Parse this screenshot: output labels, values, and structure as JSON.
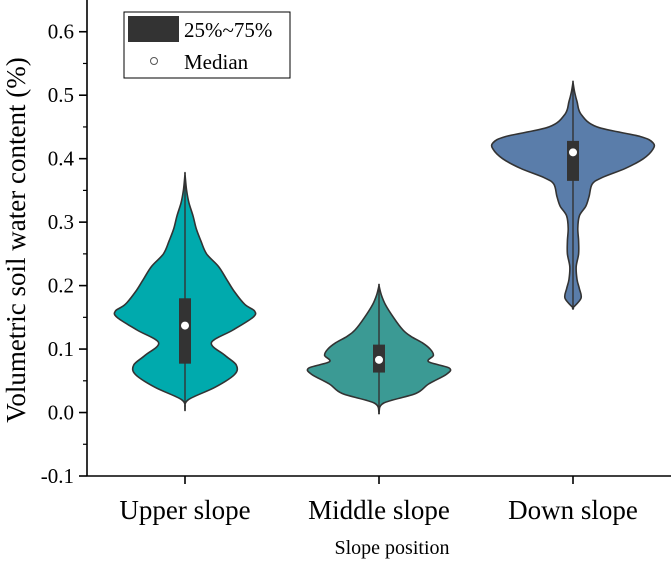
{
  "chart_data": {
    "type": "violin",
    "title": "",
    "xlabel": "Slope position",
    "ylabel": "Volumetric soil water content (%)",
    "ylim": [
      -0.1,
      0.65
    ],
    "yticks": [
      "-0.1",
      "0.0",
      "0.1",
      "0.2",
      "0.3",
      "0.4",
      "0.5",
      "0.6"
    ],
    "yticks_values": [
      -0.1,
      0.0,
      0.1,
      0.2,
      0.3,
      0.4,
      0.5,
      0.6
    ],
    "categories": [
      "Upper slope",
      "Middle slope",
      "Down slope"
    ],
    "legend": {
      "position": "top-left",
      "items": [
        {
          "label": "25%~75%",
          "symbol": "box"
        },
        {
          "label": "Median",
          "symbol": "circle"
        }
      ]
    },
    "series": [
      {
        "category": "Upper slope",
        "color": "#00AAAD",
        "min": 0.005,
        "max": 0.375,
        "q1": 0.077,
        "median": 0.137,
        "q3": 0.18,
        "density": [
          [
            0.005,
            0
          ],
          [
            0.02,
            0.04
          ],
          [
            0.04,
            0.38
          ],
          [
            0.06,
            0.62
          ],
          [
            0.075,
            0.64
          ],
          [
            0.09,
            0.5
          ],
          [
            0.11,
            0.33
          ],
          [
            0.13,
            0.6
          ],
          [
            0.15,
            0.85
          ],
          [
            0.16,
            0.87
          ],
          [
            0.17,
            0.75
          ],
          [
            0.19,
            0.62
          ],
          [
            0.21,
            0.52
          ],
          [
            0.23,
            0.42
          ],
          [
            0.25,
            0.27
          ],
          [
            0.27,
            0.2
          ],
          [
            0.29,
            0.14
          ],
          [
            0.31,
            0.1
          ],
          [
            0.33,
            0.05
          ],
          [
            0.35,
            0.02
          ],
          [
            0.375,
            0
          ]
        ]
      },
      {
        "category": "Middle slope",
        "color": "#3B9A94",
        "min": 0.0,
        "max": 0.2,
        "q1": 0.063,
        "median": 0.083,
        "q3": 0.107,
        "density": [
          [
            0.0,
            0
          ],
          [
            0.015,
            0.06
          ],
          [
            0.03,
            0.46
          ],
          [
            0.045,
            0.62
          ],
          [
            0.06,
            0.84
          ],
          [
            0.07,
            0.88
          ],
          [
            0.08,
            0.62
          ],
          [
            0.09,
            0.68
          ],
          [
            0.1,
            0.64
          ],
          [
            0.11,
            0.54
          ],
          [
            0.12,
            0.4
          ],
          [
            0.13,
            0.3
          ],
          [
            0.15,
            0.18
          ],
          [
            0.17,
            0.08
          ],
          [
            0.185,
            0.03
          ],
          [
            0.2,
            0
          ]
        ]
      },
      {
        "category": "Down slope",
        "color": "#5A7DAA",
        "min": 0.165,
        "max": 0.52,
        "q1": 0.365,
        "median": 0.41,
        "q3": 0.428,
        "density": [
          [
            0.165,
            0
          ],
          [
            0.18,
            0.1
          ],
          [
            0.195,
            0.08
          ],
          [
            0.21,
            0.05
          ],
          [
            0.23,
            0.04
          ],
          [
            0.25,
            0.07
          ],
          [
            0.27,
            0.07
          ],
          [
            0.29,
            0.06
          ],
          [
            0.31,
            0.08
          ],
          [
            0.325,
            0.16
          ],
          [
            0.34,
            0.2
          ],
          [
            0.36,
            0.24
          ],
          [
            0.37,
            0.36
          ],
          [
            0.385,
            0.66
          ],
          [
            0.4,
            0.88
          ],
          [
            0.415,
            1.0
          ],
          [
            0.425,
            1.0
          ],
          [
            0.435,
            0.84
          ],
          [
            0.45,
            0.3
          ],
          [
            0.47,
            0.1
          ],
          [
            0.49,
            0.05
          ],
          [
            0.505,
            0.02
          ],
          [
            0.52,
            0
          ]
        ]
      }
    ],
    "grid": false
  }
}
